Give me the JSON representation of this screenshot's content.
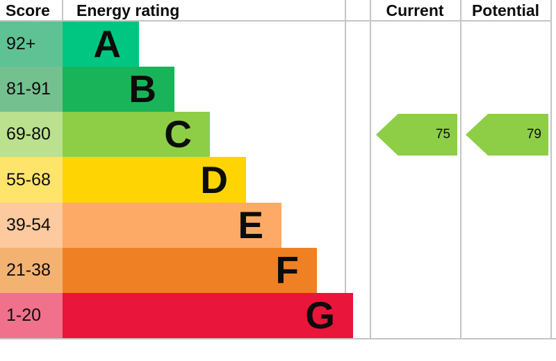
{
  "header": {
    "score": "Score",
    "energy_rating": "Energy rating",
    "current": "Current",
    "potential": "Potential"
  },
  "bands": [
    {
      "letter": "A",
      "score_range": "92+",
      "color": "#00c681",
      "score_cell_color": "#5ec295"
    },
    {
      "letter": "B",
      "score_range": "81-91",
      "color": "#19b459",
      "score_cell_color": "#74c18f"
    },
    {
      "letter": "C",
      "score_range": "69-80",
      "color": "#8dce46",
      "score_cell_color": "#bbe08e"
    },
    {
      "letter": "D",
      "score_range": "55-68",
      "color": "#fed402",
      "score_cell_color": "#ffe46b"
    },
    {
      "letter": "E",
      "score_range": "39-54",
      "color": "#fcaa65",
      "score_cell_color": "#fdc99e"
    },
    {
      "letter": "F",
      "score_range": "21-38",
      "color": "#ef8023",
      "score_cell_color": "#f4b271"
    },
    {
      "letter": "G",
      "score_range": "1-20",
      "color": "#e9153b",
      "score_cell_color": "#f0718b"
    }
  ],
  "current": {
    "value": 75,
    "band": "C",
    "arrow_color": "#8dce46"
  },
  "potential": {
    "value": 79,
    "band": "C",
    "arrow_color": "#8dce46"
  },
  "colors": {
    "grid": "#c4c4c4",
    "text": "#0b0c0c",
    "background": "#ffffff"
  },
  "chart_data": {
    "type": "bar",
    "title": "Energy rating",
    "categories": [
      "A",
      "B",
      "C",
      "D",
      "E",
      "F",
      "G"
    ],
    "score_ranges": [
      "92+",
      "81-91",
      "69-80",
      "55-68",
      "39-54",
      "21-38",
      "1-20"
    ],
    "band_colors": [
      "#00c681",
      "#19b459",
      "#8dce46",
      "#fed402",
      "#fcaa65",
      "#ef8023",
      "#e9153b"
    ],
    "series": [
      {
        "name": "Current",
        "values": [
          75
        ],
        "band": "C"
      },
      {
        "name": "Potential",
        "values": [
          79
        ],
        "band": "C"
      }
    ],
    "value_range": [
      1,
      100
    ],
    "orientation": "horizontal",
    "legend_position": "none",
    "grid": "table-lines"
  }
}
